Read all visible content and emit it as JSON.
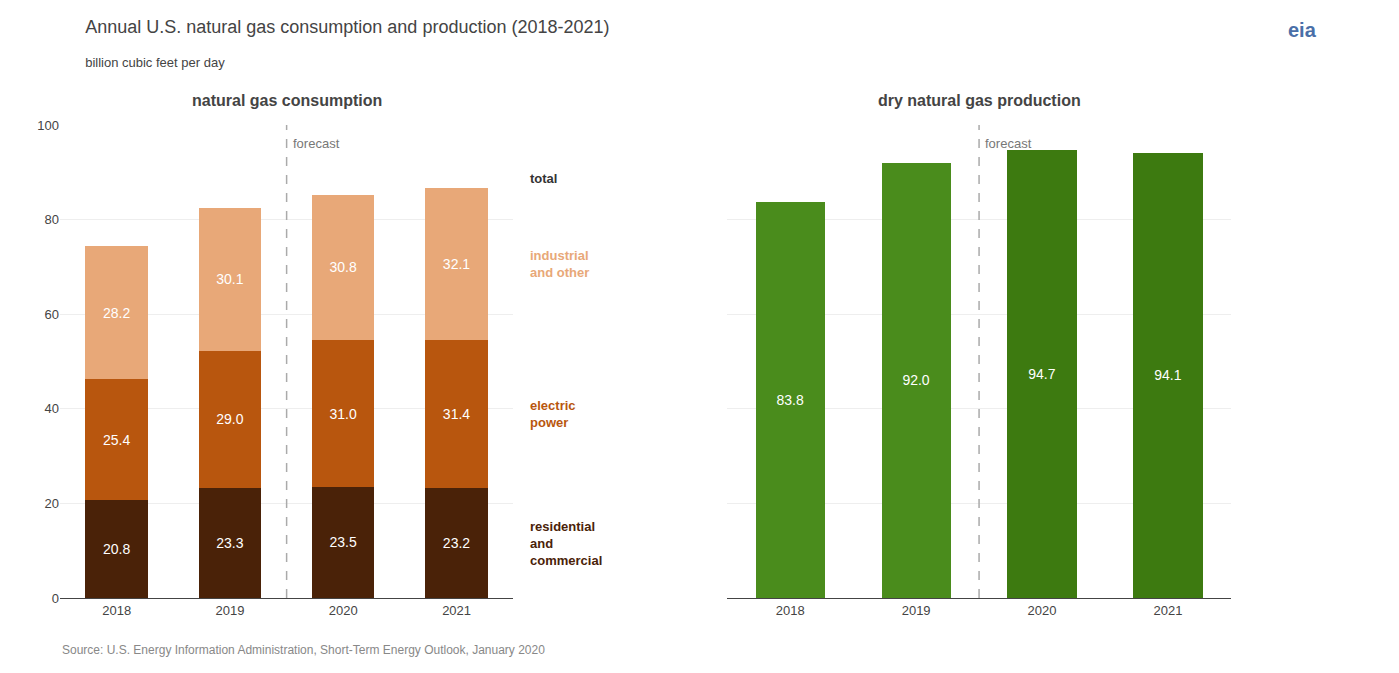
{
  "title": "Annual U.S. natural gas consumption and production (2018-2021)",
  "subtitle": "billion cubic feet per day",
  "annotations": [
    "Source: U.S. Energy Information Administration, Short-Term Energy Outlook, January 2020",
    "eia"
  ],
  "chart_data": [
    {
      "type": "bar",
      "title": "natural gas consumption",
      "stacked": true,
      "data_labels": true,
      "grid": true,
      "categories": [
        "2018",
        "2019",
        "2020",
        "2021"
      ],
      "series": [
        {
          "name": "residential\nand\ncommercial",
          "color": "#4a2208",
          "values": [
            20.8,
            23.3,
            23.5,
            23.2
          ]
        },
        {
          "name": "electric\npower",
          "color": "#b8560e",
          "values": [
            25.4,
            29.0,
            31.0,
            31.4
          ],
          "value_labels": [
            "25.4",
            "29.0",
            "31.0",
            "31.4"
          ]
        },
        {
          "name": "industrial\nand other",
          "color": "#e8a878",
          "values": [
            28.2,
            30.1,
            30.8,
            32.1
          ]
        }
      ],
      "ylim": [
        0,
        100
      ],
      "yticks": [
        0,
        20,
        40,
        60,
        80,
        100
      ],
      "annotations": [
        "forecast",
        "total"
      ]
    },
    {
      "type": "bar",
      "title": "dry natural gas production",
      "data_labels": true,
      "grid": true,
      "tick_labels": "x",
      "categories": [
        "2018",
        "2019",
        "2020",
        "2021"
      ],
      "series": [
        {
          "colors": [
            "#4a8c1c",
            "#4a8c1c",
            "#3d7a10",
            "#3d7a10"
          ],
          "values": [
            83.8,
            92.0,
            94.7,
            94.1
          ],
          "value_labels": [
            "83.8",
            "92.0",
            "94.7",
            "94.1"
          ]
        }
      ],
      "ylim": [
        0,
        100
      ],
      "yticks": [
        0,
        20,
        40,
        60,
        80,
        100
      ],
      "annotations": [
        "forecast"
      ]
    }
  ]
}
